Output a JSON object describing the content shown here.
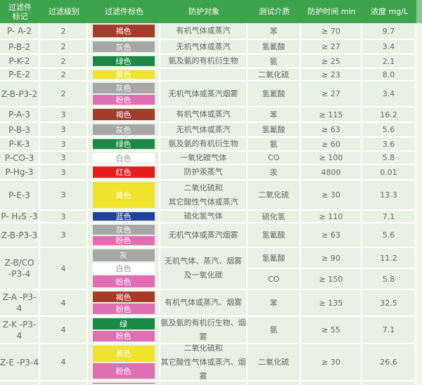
{
  "header": {
    "col1": [
      "过滤件",
      "标记"
    ],
    "col2": "过滤级别",
    "col3": "过滤件标色",
    "col4": "防护对象",
    "col5": "测试介质",
    "col6": "防护时间 min",
    "col7": "浓度 mg/L"
  },
  "colors": {
    "header_bg": "#3ea44c",
    "cell_bg": "#e9f1e4",
    "grid": "#ffffff",
    "body_text": "#60675f",
    "swatch_brown": "#a43c2a",
    "swatch_gray": "#a7a7a7",
    "swatch_green": "#1b8843",
    "swatch_yellow": "#efe32d",
    "swatch_pink": "#df6eb3",
    "swatch_white": "#ffffff",
    "swatch_red": "#e41d1d",
    "swatch_blue": "#20409f"
  },
  "rows": [
    {
      "mark": [
        "P- A-2"
      ],
      "level": "2",
      "swatches": [
        {
          "label": "褐色",
          "color": "#a43c2a",
          "text": "#ffffff"
        }
      ],
      "target": [
        "有机气体或蒸汽"
      ],
      "entries": [
        {
          "medium": "苯",
          "time": "≥ 70",
          "conc": "9.7"
        }
      ],
      "h": 24
    },
    {
      "mark": [
        "P-B-2"
      ],
      "level": "2",
      "swatches": [
        {
          "label": "灰色",
          "color": "#a7a7a7",
          "text": "#ffffff"
        }
      ],
      "target": [
        "无机气体或蒸汽"
      ],
      "entries": [
        {
          "medium": "氢氰酸",
          "time": "≥ 27",
          "conc": "3.4"
        }
      ],
      "h": 21
    },
    {
      "mark": [
        "P-K-2"
      ],
      "level": "2",
      "swatches": [
        {
          "label": "绿色",
          "color": "#1b8843",
          "text": "#ffffff"
        }
      ],
      "target": [
        "氨及氨的有机衍生物"
      ],
      "entries": [
        {
          "medium": "氨",
          "time": "≥ 25",
          "conc": "2.1"
        }
      ],
      "h": 20
    },
    {
      "mark": [
        "P-E-2"
      ],
      "level": "2",
      "swatches": [
        {
          "label": "黄色",
          "color": "#efe32d",
          "text": "#ffffff"
        }
      ],
      "target": [],
      "entries": [
        {
          "medium": "二氧化硫",
          "time": "≥ 23",
          "conc": "8.0"
        }
      ],
      "h": 18
    },
    {
      "mark": [
        "Z-B-P3-2"
      ],
      "level": "2",
      "swatches": [
        {
          "label": "灰色",
          "color": "#a7a7a7",
          "text": "#ffffff"
        },
        {
          "label": "粉色",
          "color": "#df6eb3",
          "text": "#ffffff"
        }
      ],
      "target": [
        "无机气体或蒸汽烟雾"
      ],
      "entries": [
        {
          "medium": "氢氰酸",
          "time": "≥ 27",
          "conc": "3.4"
        }
      ],
      "h": 37
    },
    {
      "mark": [
        "P-A-3"
      ],
      "level": "3",
      "swatches": [
        {
          "label": "褐色",
          "color": "#a43c2a",
          "text": "#ffffff"
        }
      ],
      "target": [
        "有机气体或蒸汽"
      ],
      "entries": [
        {
          "medium": "苯",
          "time": "≥ 115",
          "conc": "16.2"
        }
      ],
      "h": 22
    },
    {
      "mark": [
        "P-B-3"
      ],
      "level": "3",
      "swatches": [
        {
          "label": "灰色",
          "color": "#a7a7a7",
          "text": "#ffffff"
        }
      ],
      "target": [
        "无机气体或蒸汽"
      ],
      "entries": [
        {
          "medium": "氢氰酸",
          "time": "≥ 63",
          "conc": "5.6"
        }
      ],
      "h": 21
    },
    {
      "mark": [
        "P-K-3"
      ],
      "level": "3",
      "swatches": [
        {
          "label": "绿色",
          "color": "#1b8843",
          "text": "#ffffff"
        }
      ],
      "target": [
        "氨及氨的有机衍生物"
      ],
      "entries": [
        {
          "medium": "氨",
          "time": "≥ 60",
          "conc": "3.6"
        }
      ],
      "h": 20
    },
    {
      "mark": [
        "P-CO-3"
      ],
      "level": "3",
      "swatches": [
        {
          "label": "白色",
          "color": "#ffffff",
          "text": "#8f958f"
        }
      ],
      "target": [
        "一氧化碳气体"
      ],
      "entries": [
        {
          "medium": "CO",
          "time": "≥ 100",
          "conc": "5.8"
        }
      ],
      "h": 19
    },
    {
      "mark": [
        "P-Hg-3"
      ],
      "level": "3",
      "swatches": [
        {
          "label": "红色",
          "color": "#e41d1d",
          "text": "#ffffff"
        }
      ],
      "target": [
        "防护汞蒸气"
      ],
      "entries": [
        {
          "medium": "汞",
          "time": "4800",
          "conc": "0.01"
        }
      ],
      "h": 22
    },
    {
      "mark": [
        "P-E-3"
      ],
      "level": "3",
      "swatches": [
        {
          "label": "黄色",
          "color": "#efe32d",
          "text": "#ffffff"
        }
      ],
      "target": [
        "二氧化硫和",
        "其它酸性气体或蒸汽"
      ],
      "entries": [
        {
          "medium": "二氧化硫",
          "time": "≥ 30",
          "conc": "13.3"
        }
      ],
      "h": 43
    },
    {
      "mark": [
        "P- H₂S -3"
      ],
      "level": "3",
      "swatches": [
        {
          "label": "蓝色",
          "color": "#20409f",
          "text": "#ffffff"
        }
      ],
      "target": [
        "硫化氢气体"
      ],
      "entries": [
        {
          "medium": "硫化氢",
          "time": "≥ 110",
          "conc": "7.1"
        }
      ],
      "h": 18
    },
    {
      "mark": [
        "Z-B-P3-3"
      ],
      "level": "3",
      "swatches": [
        {
          "label": "灰色",
          "color": "#a7a7a7",
          "text": "#ffffff"
        },
        {
          "label": "粉色",
          "color": "#df6eb3",
          "text": "#ffffff"
        }
      ],
      "target": [
        "无机气体或蒸汽烟雾"
      ],
      "entries": [
        {
          "medium": "氢氰酸",
          "time": "≥ 63",
          "conc": "5.6"
        }
      ],
      "h": 35
    },
    {
      "mark": [
        "Z-B/CO",
        "-P3-4"
      ],
      "level": "4",
      "swatches": [
        {
          "label": "灰",
          "color": "#a7a7a7",
          "text": "#ffffff"
        },
        {
          "label": "白色",
          "color": "#ffffff",
          "text": "#8f958f"
        },
        {
          "label": "粉色",
          "color": "#df6eb3",
          "text": "#ffffff"
        }
      ],
      "target": [
        "无机气体、蒸汽、烟雾",
        "及一氧化碳"
      ],
      "entries": [
        {
          "medium": "氢氰酸",
          "time": "≥ 90",
          "conc": "11.2"
        },
        {
          "medium": "CO",
          "time": "≥ 150",
          "conc": "5.8"
        }
      ],
      "h": 60
    },
    {
      "mark": [
        "Z-A -P3-4"
      ],
      "level": "4",
      "swatches": [
        {
          "label": "褐色",
          "color": "#a43c2a",
          "text": "#ffffff"
        },
        {
          "label": "粉色",
          "color": "#df6eb3",
          "text": "#ffffff"
        }
      ],
      "target": [
        "有机气体或蒸汽、烟雾"
      ],
      "entries": [
        {
          "medium": "苯",
          "time": "≥ 135",
          "conc": "32.5"
        }
      ],
      "h": 38
    },
    {
      "mark": [
        "Z-K -P3-4"
      ],
      "level": "4",
      "swatches": [
        {
          "label": "绿",
          "color": "#1b8843",
          "text": "#ffffff"
        },
        {
          "label": "粉色",
          "color": "#df6eb3",
          "text": "#ffffff"
        }
      ],
      "target": [
        "氨及氨的有机衍生物、烟雾"
      ],
      "entries": [
        {
          "medium": "氨",
          "time": "≥ 55",
          "conc": "7.1"
        }
      ],
      "h": 39
    },
    {
      "mark": [
        "Z-E -P3-4"
      ],
      "level": "4",
      "swatches": [
        {
          "label": "黄色",
          "color": "#efe32d",
          "text": "#ffffff"
        },
        {
          "label": "粉色",
          "color": "#df6eb3",
          "text": "#ffffff"
        }
      ],
      "target": [
        "二氧化硫和",
        "其它酸性气体或蒸汽、烟雾"
      ],
      "entries": [
        {
          "medium": "二氧化硫",
          "time": "≥ 30",
          "conc": "26.6"
        }
      ],
      "h": 53
    },
    {
      "partial": true,
      "mark": [],
      "level": "",
      "swatches": [
        {
          "label": "",
          "color": "#c1556a",
          "text": "#ffffff"
        }
      ],
      "target": [],
      "entries": [
        {
          "medium": "",
          "time": "",
          "conc": ""
        }
      ],
      "h": 5
    }
  ]
}
